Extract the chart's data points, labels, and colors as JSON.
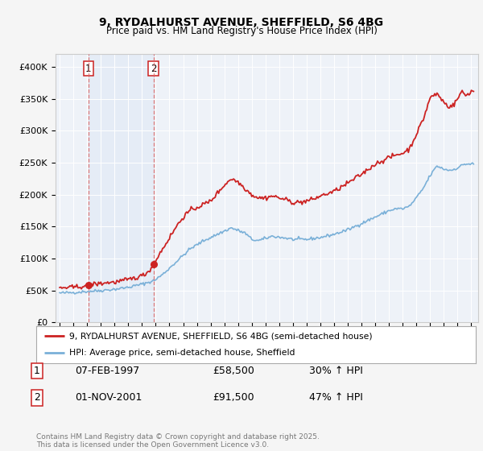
{
  "title1": "9, RYDALHURST AVENUE, SHEFFIELD, S6 4BG",
  "title2": "Price paid vs. HM Land Registry's House Price Index (HPI)",
  "ylim": [
    0,
    420000
  ],
  "yticks": [
    0,
    50000,
    100000,
    150000,
    200000,
    250000,
    300000,
    350000,
    400000
  ],
  "ytick_labels": [
    "£0",
    "£50K",
    "£100K",
    "£150K",
    "£200K",
    "£250K",
    "£300K",
    "£350K",
    "£400K"
  ],
  "background_color": "#f5f5f5",
  "plot_bg": "#eef2f8",
  "sale1_date": 1997.1,
  "sale1_price": 58500,
  "sale2_date": 2001.83,
  "sale2_price": 91500,
  "legend_line1": "9, RYDALHURST AVENUE, SHEFFIELD, S6 4BG (semi-detached house)",
  "legend_line2": "HPI: Average price, semi-detached house, Sheffield",
  "footer": "Contains HM Land Registry data © Crown copyright and database right 2025.\nThis data is licensed under the Open Government Licence v3.0.",
  "table": [
    [
      "1",
      "07-FEB-1997",
      "£58,500",
      "30% ↑ HPI"
    ],
    [
      "2",
      "01-NOV-2001",
      "£91,500",
      "47% ↑ HPI"
    ]
  ],
  "hpi_color": "#7ab0d8",
  "price_color": "#cc2222",
  "dashed_color": "#dd6666"
}
